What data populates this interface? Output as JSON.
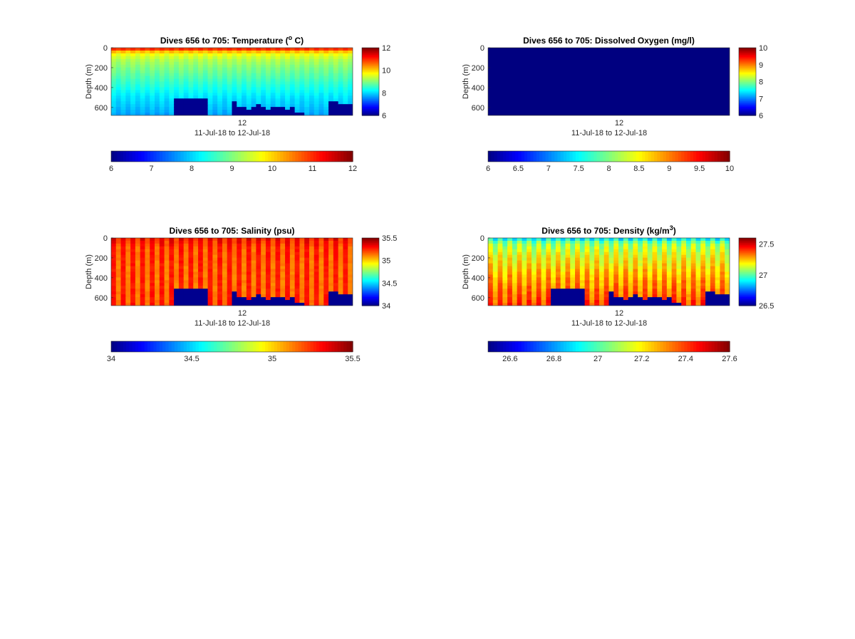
{
  "chart_data": [
    {
      "type": "heatmap",
      "variable": "temperature",
      "title_main": "Dives 656 to 705: Temperature (",
      "title_sup": "o",
      "title_end": " C)",
      "ylabel": "Depth (m)",
      "xlabel": "11-Jul-18 to 12-Jul-18",
      "x_tick_labels": [
        "12"
      ],
      "y_tick_labels": [
        "0",
        "200",
        "400",
        "600"
      ],
      "y_ticks": [
        0,
        200,
        400,
        600
      ],
      "ylim": [
        0,
        680
      ],
      "clim": [
        6,
        12
      ],
      "colorbar_ticks": [
        6,
        8,
        10,
        12
      ],
      "colorbar_tick_labels": [
        "6",
        "8",
        "10",
        "12"
      ],
      "h_colorbar_ticks": [
        6,
        7,
        8,
        9,
        10,
        11,
        12
      ],
      "h_colorbar_tick_labels": [
        "6",
        "7",
        "8",
        "9",
        "10",
        "11",
        "12"
      ],
      "colormap": "jet",
      "n_dives": 50,
      "bottom_depth_m": [
        680,
        680,
        680,
        680,
        680,
        680,
        680,
        680,
        680,
        680,
        680,
        680,
        680,
        500,
        500,
        500,
        500,
        500,
        500,
        500,
        680,
        680,
        680,
        680,
        680,
        540,
        590,
        600,
        620,
        600,
        580,
        600,
        610,
        600,
        590,
        600,
        610,
        600,
        640,
        640,
        680,
        680,
        680,
        680,
        680,
        545,
        545,
        565,
        570,
        570
      ],
      "profile_points": [
        [
          0,
          11.5
        ],
        [
          25,
          10.5
        ],
        [
          60,
          9.7
        ],
        [
          120,
          9.3
        ],
        [
          200,
          9.0
        ],
        [
          300,
          8.7
        ],
        [
          400,
          8.4
        ],
        [
          500,
          8.1
        ],
        [
          600,
          7.9
        ],
        [
          680,
          7.7
        ]
      ],
      "stripe_amplitude": 0.1
    },
    {
      "type": "heatmap",
      "variable": "dissolved_oxygen",
      "title_main": "Dives 656 to 705: Dissolved Oxygen (mg/l)",
      "title_sup": "",
      "title_end": "",
      "ylabel": "Depth (m)",
      "xlabel": "11-Jul-18 to 12-Jul-18",
      "x_tick_labels": [
        "12"
      ],
      "y_tick_labels": [
        "0",
        "200",
        "400",
        "600"
      ],
      "y_ticks": [
        0,
        200,
        400,
        600
      ],
      "ylim": [
        0,
        680
      ],
      "clim": [
        6,
        10
      ],
      "colorbar_ticks": [
        6,
        7,
        8,
        9,
        10
      ],
      "colorbar_tick_labels": [
        "6",
        "7",
        "8",
        "9",
        "10"
      ],
      "h_colorbar_ticks": [
        6,
        6.5,
        7,
        7.5,
        8,
        8.5,
        9,
        9.5,
        10
      ],
      "h_colorbar_tick_labels": [
        "6",
        "6.5",
        "7",
        "7.5",
        "8",
        "8.5",
        "9",
        "9.5",
        "10"
      ],
      "colormap": "jet",
      "n_dives": 50,
      "bottom_depth_m": [],
      "profile_points": [
        [
          0,
          6
        ],
        [
          680,
          6
        ]
      ],
      "stripe_amplitude": 0
    },
    {
      "type": "heatmap",
      "variable": "salinity",
      "title_main": "Dives 656 to 705: Salinity (psu)",
      "title_sup": "",
      "title_end": "",
      "ylabel": "Depth (m)",
      "xlabel": "11-Jul-18 to 12-Jul-18",
      "x_tick_labels": [
        "12"
      ],
      "y_tick_labels": [
        "0",
        "200",
        "400",
        "600"
      ],
      "y_ticks": [
        0,
        200,
        400,
        600
      ],
      "ylim": [
        0,
        680
      ],
      "clim": [
        34,
        35.5
      ],
      "colorbar_ticks": [
        34,
        34.5,
        35,
        35.5
      ],
      "colorbar_tick_labels": [
        "34",
        "34.5",
        "35",
        "35.5"
      ],
      "h_colorbar_ticks": [
        34,
        34.5,
        35,
        35.5
      ],
      "h_colorbar_tick_labels": [
        "34",
        "34.5",
        "35",
        "35.5"
      ],
      "colormap": "jet",
      "n_dives": 50,
      "bottom_depth_m": [
        680,
        680,
        680,
        680,
        680,
        680,
        680,
        680,
        680,
        680,
        680,
        680,
        680,
        500,
        500,
        500,
        500,
        500,
        500,
        500,
        680,
        680,
        680,
        680,
        680,
        540,
        590,
        600,
        620,
        600,
        580,
        600,
        610,
        600,
        590,
        600,
        610,
        600,
        640,
        640,
        680,
        680,
        680,
        680,
        680,
        545,
        545,
        565,
        570,
        570
      ],
      "profile_points": [
        [
          0,
          35.3
        ],
        [
          100,
          35.22
        ],
        [
          300,
          35.2
        ],
        [
          500,
          35.2
        ],
        [
          680,
          35.22
        ]
      ],
      "stripe_amplitude": 0.08
    },
    {
      "type": "heatmap",
      "variable": "density",
      "title_main": "Dives 656 to 705: Density (kg/m",
      "title_sup": "3",
      "title_end": ")",
      "ylabel": "Depth (m)",
      "xlabel": "11-Jul-18 to 12-Jul-18",
      "x_tick_labels": [
        "12"
      ],
      "y_tick_labels": [
        "0",
        "200",
        "400",
        "600"
      ],
      "y_ticks": [
        0,
        200,
        400,
        600
      ],
      "ylim": [
        0,
        680
      ],
      "clim": [
        26.5,
        27.6
      ],
      "colorbar_ticks": [
        26.5,
        27,
        27.5
      ],
      "colorbar_tick_labels": [
        "26.5",
        "27",
        "27.5"
      ],
      "h_colorbar_ticks": [
        26.6,
        26.8,
        27,
        27.2,
        27.4,
        27.6
      ],
      "h_colorbar_tick_labels": [
        "26.6",
        "26.8",
        "27",
        "27.2",
        "27.4",
        "27.6"
      ],
      "colormap": "jet",
      "n_dives": 50,
      "bottom_depth_m": [
        680,
        680,
        680,
        680,
        680,
        680,
        680,
        680,
        680,
        680,
        680,
        680,
        680,
        500,
        500,
        500,
        500,
        500,
        500,
        500,
        680,
        680,
        680,
        680,
        680,
        540,
        590,
        600,
        620,
        600,
        580,
        600,
        610,
        600,
        590,
        600,
        610,
        600,
        640,
        640,
        680,
        680,
        680,
        680,
        680,
        545,
        545,
        565,
        570,
        570
      ],
      "profile_points": [
        [
          0,
          26.85
        ],
        [
          30,
          27.0
        ],
        [
          80,
          27.1
        ],
        [
          200,
          27.18
        ],
        [
          400,
          27.28
        ],
        [
          600,
          27.36
        ],
        [
          680,
          27.4
        ]
      ],
      "stripe_amplitude": 0.07
    }
  ]
}
